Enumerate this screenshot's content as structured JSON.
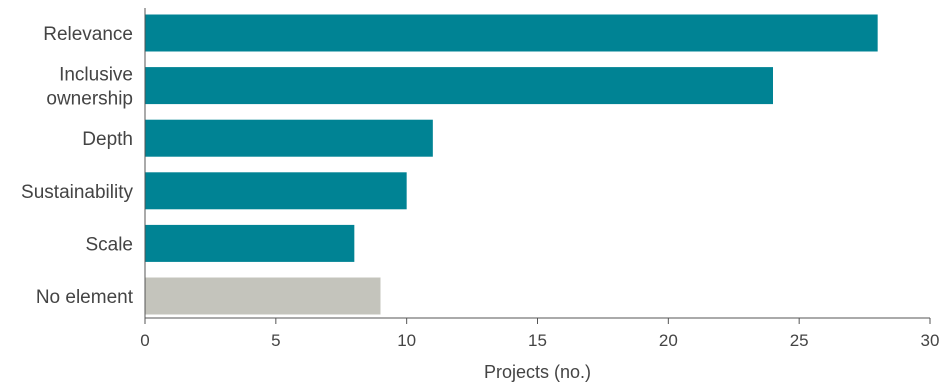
{
  "chart_data": {
    "type": "bar",
    "orientation": "horizontal",
    "categories": [
      [
        "Relevance"
      ],
      [
        "Inclusive",
        "ownership"
      ],
      [
        "Depth"
      ],
      [
        "Sustainability"
      ],
      [
        "Scale"
      ],
      [
        "No element"
      ]
    ],
    "values": [
      28,
      24,
      11,
      10,
      8,
      9
    ],
    "bar_colors": [
      "#008394",
      "#008394",
      "#008394",
      "#008394",
      "#008394",
      "#c4c4bc"
    ],
    "title": "",
    "xlabel": "Projects (no.)",
    "ylabel": "",
    "xlim": [
      0,
      30
    ],
    "xticks": [
      0,
      5,
      10,
      15,
      20,
      25,
      30
    ],
    "grid": false,
    "legend": "none",
    "axis_color": "#555555",
    "text_color": "#444444"
  }
}
